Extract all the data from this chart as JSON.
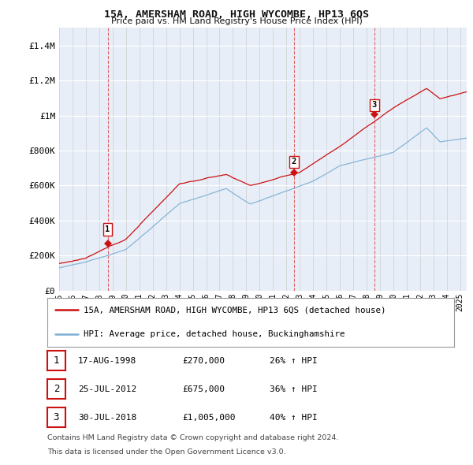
{
  "title": "15A, AMERSHAM ROAD, HIGH WYCOMBE, HP13 6QS",
  "subtitle": "Price paid vs. HM Land Registry's House Price Index (HPI)",
  "background_color": "#ffffff",
  "plot_bg_color": "#e8eef8",
  "grid_color": "#ffffff",
  "ylim": [
    0,
    1500000
  ],
  "yticks": [
    0,
    200000,
    400000,
    600000,
    800000,
    1000000,
    1200000,
    1400000
  ],
  "ytick_labels": [
    "£0",
    "£200K",
    "£400K",
    "£600K",
    "£800K",
    "£1M",
    "£1.2M",
    "£1.4M"
  ],
  "sale_dates": [
    1998.63,
    2012.56,
    2018.58
  ],
  "sale_prices": [
    270000,
    675000,
    1005000
  ],
  "sale_labels": [
    "1",
    "2",
    "3"
  ],
  "hpi_color": "#7bafd4",
  "sale_line_color": "#cc1111",
  "legend_entries": [
    "15A, AMERSHAM ROAD, HIGH WYCOMBE, HP13 6QS (detached house)",
    "HPI: Average price, detached house, Buckinghamshire"
  ],
  "transaction_rows": [
    {
      "num": "1",
      "date": "17-AUG-1998",
      "price": "£270,000",
      "hpi": "26% ↑ HPI"
    },
    {
      "num": "2",
      "date": "25-JUL-2012",
      "price": "£675,000",
      "hpi": "36% ↑ HPI"
    },
    {
      "num": "3",
      "date": "30-JUL-2018",
      "price": "£1,005,000",
      "hpi": "40% ↑ HPI"
    }
  ],
  "footer_line1": "Contains HM Land Registry data © Crown copyright and database right 2024.",
  "footer_line2": "This data is licensed under the Open Government Licence v3.0.",
  "xmin": 1995.0,
  "xmax": 2025.5
}
